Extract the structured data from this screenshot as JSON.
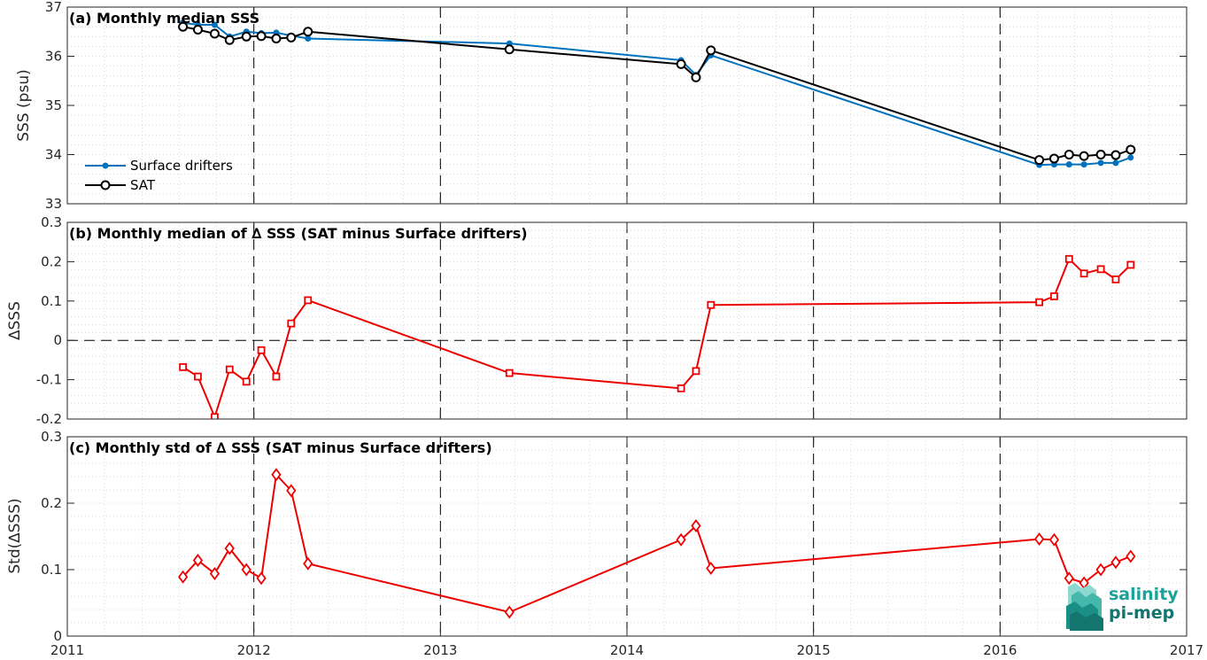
{
  "colors": {
    "drifters": "#0072BD",
    "sat": "#000000",
    "delta": "#EE0000",
    "logo_teal": "#1aa39a",
    "logo_dark": "#13756e"
  },
  "logo": {
    "line1": "salinity",
    "line2": "pi-mep"
  },
  "x_axis": {
    "range": [
      2011,
      2017
    ],
    "ticks": [
      "2011",
      "2012",
      "2013",
      "2014",
      "2015",
      "2016",
      "2017"
    ],
    "dashed_vlines": [
      2012,
      2013,
      2014,
      2015,
      2016
    ]
  },
  "chart_data": [
    {
      "type": "line",
      "title": "(a) Monthly median SSS",
      "ylabel": "SSS (psu)",
      "ylim": [
        33,
        37
      ],
      "yticks": [
        "33",
        "34",
        "35",
        "36",
        "37"
      ],
      "grid": "minor dotted",
      "legend": "bottom-left",
      "series": [
        {
          "name": "Surface drifters",
          "marker": "dot",
          "x": [
            2011.62,
            2011.7,
            2011.79,
            2011.87,
            2011.96,
            2012.04,
            2012.12,
            2012.2,
            2012.29,
            2013.37,
            2014.29,
            2014.37,
            2014.45,
            2016.21,
            2016.29,
            2016.37,
            2016.45,
            2016.54,
            2016.62,
            2016.7
          ],
          "y": [
            36.68,
            36.64,
            36.64,
            36.4,
            36.5,
            36.47,
            36.48,
            36.42,
            36.36,
            36.26,
            35.92,
            35.62,
            36.02,
            33.79,
            33.8,
            33.8,
            33.8,
            33.83,
            33.83,
            33.94
          ]
        },
        {
          "name": "SAT",
          "marker": "circle",
          "x": [
            2011.62,
            2011.7,
            2011.79,
            2011.87,
            2011.96,
            2012.04,
            2012.12,
            2012.2,
            2012.29,
            2013.37,
            2014.29,
            2014.37,
            2014.45,
            2016.21,
            2016.29,
            2016.37,
            2016.45,
            2016.54,
            2016.62,
            2016.7
          ],
          "y": [
            36.6,
            36.54,
            36.46,
            36.33,
            36.4,
            36.41,
            36.36,
            36.38,
            36.5,
            36.14,
            35.84,
            35.57,
            36.12,
            33.89,
            33.92,
            34.0,
            33.97,
            34.0,
            33.99,
            34.1
          ]
        }
      ]
    },
    {
      "type": "line",
      "title": "(b) Monthly median of ∆ SSS (SAT minus Surface drifters)",
      "ylabel": "∆SSS",
      "ylim": [
        -0.2,
        0.3
      ],
      "yticks": [
        "-0.2",
        "-0.1",
        "0",
        "0.1",
        "0.2",
        "0.3"
      ],
      "zero_line": "dashed",
      "series": [
        {
          "marker": "square",
          "x": [
            2011.62,
            2011.7,
            2011.79,
            2011.87,
            2011.96,
            2012.04,
            2012.12,
            2012.2,
            2012.29,
            2013.37,
            2014.29,
            2014.37,
            2014.45,
            2016.21,
            2016.29,
            2016.37,
            2016.45,
            2016.54,
            2016.62,
            2016.7
          ],
          "y": [
            -0.068,
            -0.092,
            -0.195,
            -0.074,
            -0.105,
            -0.025,
            -0.092,
            0.043,
            0.102,
            -0.083,
            -0.122,
            -0.078,
            0.09,
            0.097,
            0.112,
            0.207,
            0.17,
            0.181,
            0.155,
            0.192
          ]
        }
      ]
    },
    {
      "type": "line",
      "title": "(c) Monthly std of ∆ SSS (SAT minus Surface drifters)",
      "ylabel": "Std(∆SSS)",
      "ylim": [
        0,
        0.3
      ],
      "yticks": [
        "0",
        "0.1",
        "0.2",
        "0.3"
      ],
      "series": [
        {
          "marker": "diamond",
          "x": [
            2011.62,
            2011.7,
            2011.79,
            2011.87,
            2011.96,
            2012.04,
            2012.12,
            2012.2,
            2012.29,
            2013.37,
            2014.29,
            2014.37,
            2014.45,
            2016.21,
            2016.29,
            2016.37,
            2016.45,
            2016.54,
            2016.62,
            2016.7
          ],
          "y": [
            0.089,
            0.114,
            0.094,
            0.132,
            0.1,
            0.087,
            0.243,
            0.219,
            0.109,
            0.036,
            0.145,
            0.166,
            0.102,
            0.146,
            0.145,
            0.087,
            0.08,
            0.1,
            0.111,
            0.12
          ]
        }
      ]
    }
  ]
}
